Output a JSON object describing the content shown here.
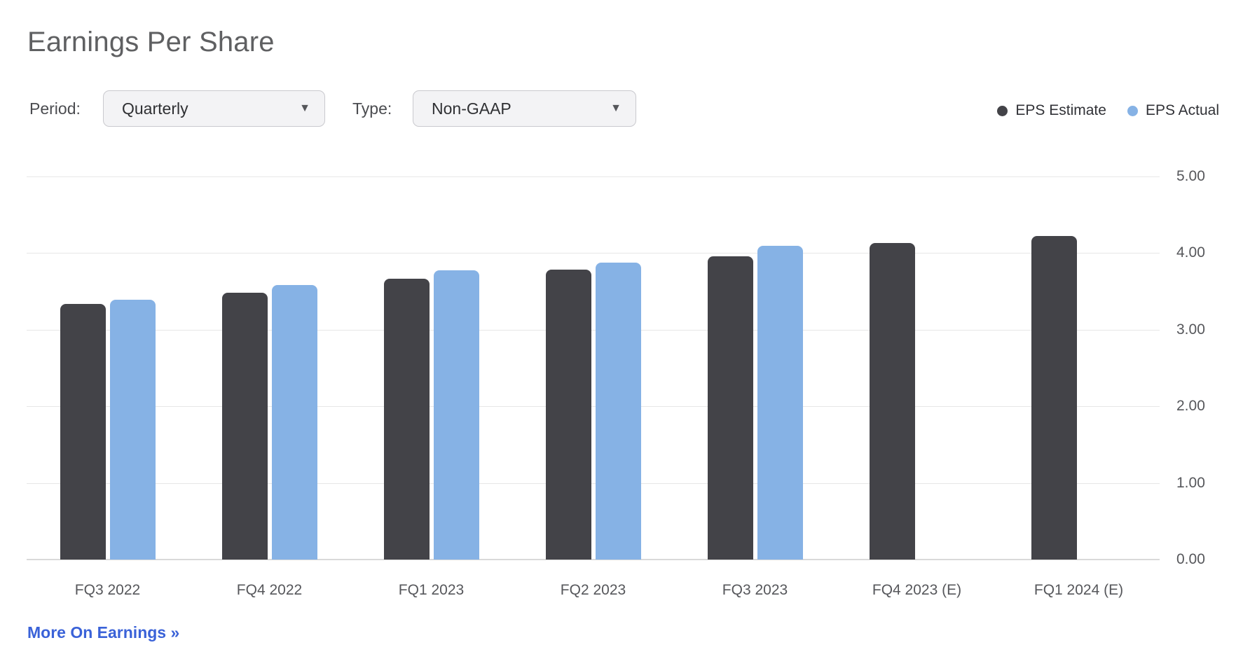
{
  "title": "Earnings Per Share",
  "controls": {
    "period_label": "Period:",
    "period_value": "Quarterly",
    "type_label": "Type:",
    "type_value": "Non-GAAP",
    "dropdown_arrow_icon": "▼"
  },
  "legend": [
    {
      "label": "EPS Estimate",
      "color": "#434348"
    },
    {
      "label": "EPS Actual",
      "color": "#86b2e5"
    }
  ],
  "link": {
    "label": "More On Earnings »"
  },
  "colors": {
    "estimate": "#434348",
    "actual": "#86b2e5",
    "gridline": "#e7e7e7",
    "axis_line": "#d9d9d9",
    "link_blue": "#3a62d8"
  },
  "chart_data": {
    "type": "bar",
    "title": "Earnings Per Share",
    "categories": [
      "FQ3 2022",
      "FQ4 2022",
      "FQ1 2023",
      "FQ2 2023",
      "FQ3 2023",
      "FQ4 2023 (E)",
      "FQ1 2024 (E)"
    ],
    "series": [
      {
        "name": "EPS Estimate",
        "color": "#434348",
        "values": [
          3.33,
          3.48,
          3.66,
          3.78,
          3.95,
          4.13,
          4.22
        ]
      },
      {
        "name": "EPS Actual",
        "color": "#86b2e5",
        "values": [
          3.39,
          3.58,
          3.77,
          3.87,
          4.09,
          null,
          null
        ]
      }
    ],
    "xlabel": "",
    "ylabel": "",
    "ylim": [
      0,
      5
    ],
    "yticks": [
      "5.00",
      "4.00",
      "3.00",
      "2.00",
      "1.00",
      "0.00"
    ],
    "grid": true,
    "legend_position": "top-right",
    "yaxis_side": "right"
  }
}
